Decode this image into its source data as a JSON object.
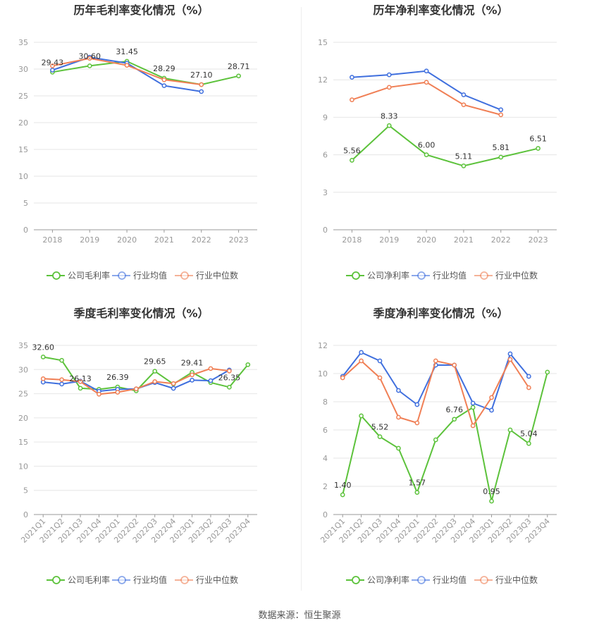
{
  "source_label": "数据来源：恒生聚源",
  "chart_data": [
    {
      "type": "line",
      "title": "历年毛利率变化情况（%）",
      "categories": [
        "2018",
        "2019",
        "2020",
        "2021",
        "2022",
        "2023"
      ],
      "ylim": [
        0,
        35
      ],
      "yticks": [
        0,
        5,
        10,
        15,
        20,
        25,
        30,
        35
      ],
      "grid": true,
      "legend_position": "bottom",
      "rotate_x": false,
      "label_series": 0,
      "series": [
        {
          "name": "公司毛利率",
          "color": "#5cc23b",
          "values": [
            29.43,
            30.6,
            31.45,
            28.29,
            27.1,
            28.71
          ],
          "labels": [
            "29.43",
            "30.60",
            "31.45",
            "28.29",
            "27.10",
            "28.71"
          ]
        },
        {
          "name": "行业均值",
          "color": "#3f6fde",
          "values": [
            29.8,
            32.2,
            31.1,
            26.9,
            25.8,
            null
          ]
        },
        {
          "name": "行业中位数",
          "color": "#f07f55",
          "values": [
            30.6,
            32.0,
            30.7,
            28.0,
            27.1,
            null
          ]
        }
      ]
    },
    {
      "type": "line",
      "title": "历年净利率变化情况（%）",
      "categories": [
        "2018",
        "2019",
        "2020",
        "2021",
        "2022",
        "2023"
      ],
      "ylim": [
        0,
        15
      ],
      "yticks": [
        0,
        3,
        6,
        9,
        12,
        15
      ],
      "grid": true,
      "legend_position": "bottom",
      "rotate_x": false,
      "label_series": 0,
      "series": [
        {
          "name": "公司净利率",
          "color": "#5cc23b",
          "values": [
            5.56,
            8.33,
            6.0,
            5.11,
            5.81,
            6.51
          ],
          "labels": [
            "5.56",
            "8.33",
            "6.00",
            "5.11",
            "5.81",
            "6.51"
          ]
        },
        {
          "name": "行业均值",
          "color": "#3f6fde",
          "values": [
            12.2,
            12.4,
            12.7,
            10.8,
            9.6,
            null
          ]
        },
        {
          "name": "行业中位数",
          "color": "#f07f55",
          "values": [
            10.4,
            11.4,
            11.8,
            10.0,
            9.2,
            null
          ]
        }
      ]
    },
    {
      "type": "line",
      "title": "季度毛利率变化情况（%）",
      "categories": [
        "2021Q1",
        "2021Q2",
        "2021Q3",
        "2021Q4",
        "2022Q1",
        "2022Q2",
        "2022Q3",
        "2022Q4",
        "2023Q1",
        "2023Q2",
        "2023Q3",
        "2023Q4"
      ],
      "ylim": [
        0,
        35
      ],
      "yticks": [
        0,
        5,
        10,
        15,
        20,
        25,
        30,
        35
      ],
      "grid": true,
      "legend_position": "bottom",
      "rotate_x": true,
      "label_series": 0,
      "series": [
        {
          "name": "公司毛利率",
          "color": "#5cc23b",
          "values": [
            32.6,
            31.9,
            26.13,
            25.9,
            26.39,
            25.6,
            29.65,
            27.0,
            29.41,
            27.3,
            26.35,
            31.0
          ],
          "labels": [
            "32.60",
            "",
            "26.13",
            "",
            "26.39",
            "",
            "29.65",
            "",
            "29.41",
            "",
            "26.35",
            ""
          ]
        },
        {
          "name": "行业均值",
          "color": "#3f6fde",
          "values": [
            27.4,
            27.0,
            27.6,
            25.5,
            25.9,
            26.0,
            27.3,
            26.1,
            27.8,
            27.7,
            29.9,
            null
          ]
        },
        {
          "name": "行业中位数",
          "color": "#f07f55",
          "values": [
            28.1,
            27.9,
            27.5,
            24.9,
            25.3,
            26.0,
            27.5,
            27.1,
            28.9,
            30.2,
            29.7,
            null
          ]
        }
      ]
    },
    {
      "type": "line",
      "title": "季度净利率变化情况（%）",
      "categories": [
        "2021Q1",
        "2021Q2",
        "2021Q3",
        "2021Q4",
        "2022Q1",
        "2022Q2",
        "2022Q3",
        "2022Q4",
        "2023Q1",
        "2023Q2",
        "2023Q3",
        "2023Q4"
      ],
      "ylim": [
        0,
        12
      ],
      "yticks": [
        0,
        2,
        4,
        6,
        8,
        10,
        12
      ],
      "grid": true,
      "legend_position": "bottom",
      "rotate_x": true,
      "label_series": 0,
      "series": [
        {
          "name": "公司净利率",
          "color": "#5cc23b",
          "values": [
            1.4,
            7.0,
            5.52,
            4.7,
            1.57,
            5.3,
            6.76,
            7.6,
            0.95,
            6.0,
            5.04,
            10.1
          ],
          "labels": [
            "1.40",
            "",
            "5.52",
            "",
            "1.57",
            "",
            "6.76",
            "",
            "0.95",
            "",
            "5.04",
            ""
          ]
        },
        {
          "name": "行业均值",
          "color": "#3f6fde",
          "values": [
            9.8,
            11.5,
            10.9,
            8.8,
            7.8,
            10.6,
            10.6,
            7.9,
            7.4,
            11.4,
            9.8,
            null
          ]
        },
        {
          "name": "行业中位数",
          "color": "#f07f55",
          "values": [
            9.7,
            10.9,
            9.7,
            6.9,
            6.5,
            10.9,
            10.6,
            6.3,
            8.3,
            11.0,
            9.0,
            null
          ]
        }
      ]
    }
  ]
}
